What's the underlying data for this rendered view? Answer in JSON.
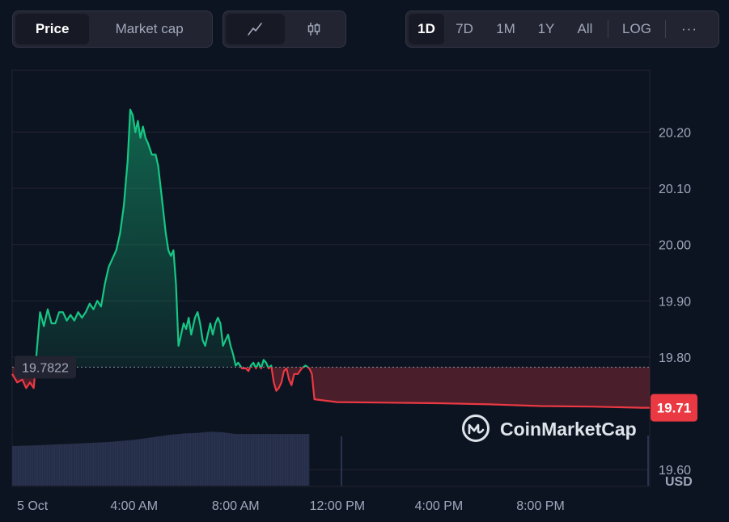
{
  "toolbar": {
    "metric_tabs": [
      {
        "label": "Price",
        "active": true
      },
      {
        "label": "Market cap",
        "active": false
      }
    ],
    "chart_type_icons": [
      {
        "icon": "line-chart-icon",
        "active": true
      },
      {
        "icon": "candlestick-icon",
        "active": false
      }
    ],
    "ranges": [
      {
        "label": "1D",
        "active": true
      },
      {
        "label": "7D",
        "active": false
      },
      {
        "label": "1M",
        "active": false
      },
      {
        "label": "1Y",
        "active": false
      },
      {
        "label": "All",
        "active": false
      }
    ],
    "log_label": "LOG",
    "more_label": "···"
  },
  "watermark": "CoinMarketCap",
  "currency_label": "USD",
  "colors": {
    "background": "#0d1421",
    "up": "#16c784",
    "down": "#ea3943",
    "grid": "#222531",
    "volume": "#2a3350"
  },
  "chart_data": {
    "type": "area",
    "title": "",
    "xlabel": "",
    "ylabel": "",
    "x_ticks": [
      "5 Oct",
      "4:00 AM",
      "8:00 AM",
      "12:00 PM",
      "4:00 PM",
      "8:00 PM"
    ],
    "y_ticks": [
      "19.60",
      "19.80",
      "19.90",
      "20.00",
      "20.10",
      "20.20"
    ],
    "ylim": [
      19.57,
      20.31
    ],
    "x_unit": "hours from midnight 5 Oct",
    "xlim": [
      -0.8,
      24.3
    ],
    "open_price": 19.7822,
    "open_price_label": "19.7822",
    "current_price": 19.71,
    "current_price_label": "19.71",
    "grid": true,
    "series": [
      {
        "values": [
          [
            -0.8,
            19.77
          ],
          [
            -0.6,
            19.755
          ],
          [
            -0.4,
            19.76
          ],
          [
            -0.25,
            19.745
          ],
          [
            -0.1,
            19.755
          ],
          [
            0.05,
            19.745
          ],
          [
            0.15,
            19.8
          ],
          [
            0.3,
            19.88
          ],
          [
            0.45,
            19.855
          ],
          [
            0.6,
            19.885
          ],
          [
            0.75,
            19.86
          ],
          [
            0.9,
            19.86
          ],
          [
            1.05,
            19.88
          ],
          [
            1.2,
            19.88
          ],
          [
            1.35,
            19.865
          ],
          [
            1.5,
            19.875
          ],
          [
            1.65,
            19.865
          ],
          [
            1.8,
            19.88
          ],
          [
            1.95,
            19.87
          ],
          [
            2.1,
            19.88
          ],
          [
            2.25,
            19.895
          ],
          [
            2.4,
            19.885
          ],
          [
            2.55,
            19.9
          ],
          [
            2.7,
            19.89
          ],
          [
            2.85,
            19.93
          ],
          [
            3.0,
            19.96
          ],
          [
            3.15,
            19.975
          ],
          [
            3.3,
            19.99
          ],
          [
            3.45,
            20.02
          ],
          [
            3.6,
            20.07
          ],
          [
            3.75,
            20.15
          ],
          [
            3.85,
            20.24
          ],
          [
            3.95,
            20.23
          ],
          [
            4.05,
            20.2
          ],
          [
            4.15,
            20.22
          ],
          [
            4.25,
            20.19
          ],
          [
            4.35,
            20.21
          ],
          [
            4.45,
            20.19
          ],
          [
            4.55,
            20.18
          ],
          [
            4.7,
            20.16
          ],
          [
            4.85,
            20.16
          ],
          [
            4.95,
            20.14
          ],
          [
            5.05,
            20.1
          ],
          [
            5.15,
            20.06
          ],
          [
            5.25,
            20.02
          ],
          [
            5.35,
            19.99
          ],
          [
            5.45,
            19.98
          ],
          [
            5.55,
            19.99
          ],
          [
            5.65,
            19.93
          ],
          [
            5.75,
            19.82
          ],
          [
            5.85,
            19.84
          ],
          [
            5.95,
            19.86
          ],
          [
            6.05,
            19.85
          ],
          [
            6.15,
            19.87
          ],
          [
            6.25,
            19.84
          ],
          [
            6.4,
            19.87
          ],
          [
            6.5,
            19.88
          ],
          [
            6.6,
            19.86
          ],
          [
            6.7,
            19.83
          ],
          [
            6.8,
            19.82
          ],
          [
            6.9,
            19.84
          ],
          [
            7.0,
            19.86
          ],
          [
            7.1,
            19.84
          ],
          [
            7.2,
            19.86
          ],
          [
            7.3,
            19.87
          ],
          [
            7.4,
            19.86
          ],
          [
            7.5,
            19.82
          ],
          [
            7.6,
            19.83
          ],
          [
            7.7,
            19.84
          ],
          [
            7.8,
            19.82
          ],
          [
            7.9,
            19.805
          ],
          [
            8.0,
            19.785
          ],
          [
            8.1,
            19.79
          ],
          [
            8.25,
            19.78
          ],
          [
            8.4,
            19.78
          ],
          [
            8.5,
            19.775
          ],
          [
            8.6,
            19.785
          ],
          [
            8.7,
            19.79
          ],
          [
            8.8,
            19.78
          ],
          [
            8.9,
            19.79
          ],
          [
            9.0,
            19.78
          ],
          [
            9.1,
            19.795
          ],
          [
            9.2,
            19.79
          ],
          [
            9.3,
            19.78
          ],
          [
            9.4,
            19.785
          ],
          [
            9.5,
            19.755
          ],
          [
            9.6,
            19.74
          ],
          [
            9.7,
            19.745
          ],
          [
            9.8,
            19.755
          ],
          [
            9.9,
            19.775
          ],
          [
            10.0,
            19.78
          ],
          [
            10.1,
            19.76
          ],
          [
            10.2,
            19.75
          ],
          [
            10.3,
            19.77
          ],
          [
            10.45,
            19.77
          ],
          [
            10.6,
            19.78
          ],
          [
            10.75,
            19.785
          ],
          [
            10.9,
            19.78
          ],
          [
            11.0,
            19.77
          ],
          [
            11.1,
            19.725
          ],
          [
            12.0,
            19.72
          ],
          [
            14.0,
            19.719
          ],
          [
            16.0,
            19.718
          ],
          [
            18.0,
            19.716
          ],
          [
            20.0,
            19.713
          ],
          [
            22.0,
            19.712
          ],
          [
            24.0,
            19.71
          ],
          [
            24.3,
            19.71
          ]
        ]
      }
    ],
    "volume": {
      "max": 1.0,
      "values": [
        [
          -0.8,
          0.69
        ],
        [
          0.0,
          0.7
        ],
        [
          0.5,
          0.71
        ],
        [
          1.0,
          0.72
        ],
        [
          1.5,
          0.73
        ],
        [
          2.0,
          0.74
        ],
        [
          2.5,
          0.75
        ],
        [
          3.0,
          0.76
        ],
        [
          3.5,
          0.78
        ],
        [
          4.0,
          0.8
        ],
        [
          4.5,
          0.83
        ],
        [
          5.0,
          0.86
        ],
        [
          5.5,
          0.89
        ],
        [
          6.0,
          0.91
        ],
        [
          6.5,
          0.92
        ],
        [
          7.0,
          0.94
        ],
        [
          7.5,
          0.93
        ],
        [
          8.0,
          0.9
        ],
        [
          8.5,
          0.9
        ],
        [
          9.0,
          0.9
        ],
        [
          9.5,
          0.9
        ],
        [
          10.0,
          0.9
        ],
        [
          10.5,
          0.9
        ],
        [
          10.9,
          0.9
        ]
      ]
    }
  }
}
